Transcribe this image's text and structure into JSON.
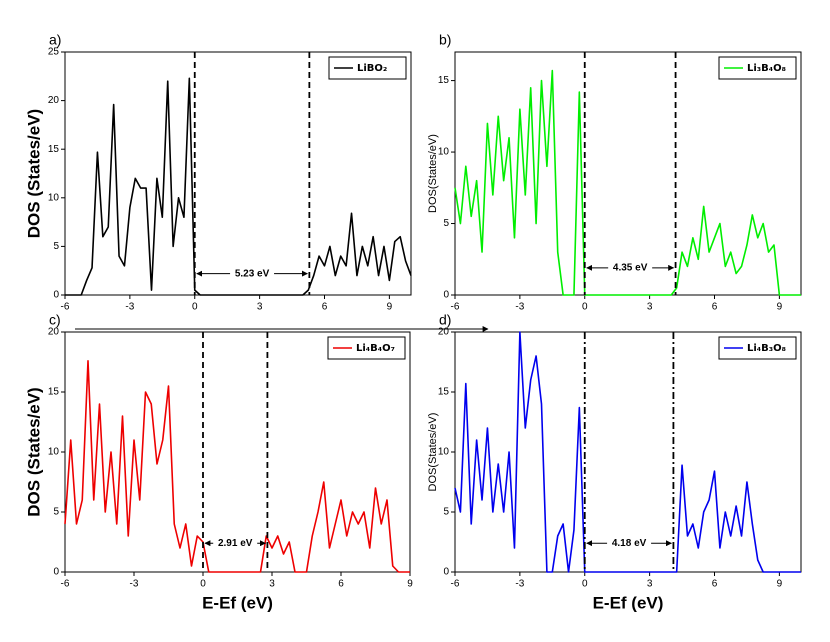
{
  "chart_data": [
    {
      "type": "line",
      "panel_label": "a)",
      "ylabel": "DOS (States/eV)",
      "ylabel_bold": true,
      "xlim": [
        -6,
        10
      ],
      "xticks": [
        -6,
        -3,
        0,
        3,
        6,
        9
      ],
      "ylim": [
        0,
        25
      ],
      "yticks": [
        0,
        5,
        10,
        15,
        20,
        25
      ],
      "legend": "upper right",
      "gap_edges": [
        0,
        5.3
      ],
      "vline_style": "dashed",
      "annotation_y": 2.2,
      "annotation": "5.23 eV",
      "x": [
        -6,
        -5.75,
        -5.5,
        -5.25,
        -5,
        -4.75,
        -4.5,
        -4.25,
        -4,
        -3.75,
        -3.5,
        -3.25,
        -3,
        -2.75,
        -2.5,
        -2.25,
        -2,
        -1.75,
        -1.5,
        -1.25,
        -1,
        -0.75,
        -0.5,
        -0.25,
        0,
        0.25,
        0.5,
        0.75,
        1,
        1.25,
        1.5,
        1.75,
        2,
        2.25,
        2.5,
        2.75,
        3,
        3.25,
        3.5,
        3.75,
        4,
        4.25,
        4.5,
        4.75,
        5,
        5.25,
        5.5,
        5.75,
        6,
        6.25,
        6.5,
        6.75,
        7,
        7.25,
        7.5,
        7.75,
        8,
        8.25,
        8.5,
        8.75,
        9,
        9.25,
        9.5,
        9.75,
        10
      ],
      "series": [
        {
          "name": "LiBO₂",
          "color": "#000000",
          "values": [
            0,
            0,
            0,
            0,
            1.5,
            2.8,
            14.7,
            6,
            7,
            19.6,
            4,
            3,
            9,
            12,
            11,
            11,
            0.5,
            12,
            8,
            22,
            5,
            10,
            8,
            22.3,
            0.5,
            0,
            0,
            0,
            0,
            0,
            0,
            0,
            0,
            0,
            0,
            0,
            0,
            0,
            0,
            0,
            0,
            0,
            0,
            0,
            0,
            0.5,
            2,
            4,
            3,
            5,
            2,
            4,
            3,
            8.4,
            2,
            5,
            3,
            6,
            2,
            5,
            1.5,
            5.5,
            6,
            3.5,
            2
          ]
        }
      ]
    },
    {
      "type": "line",
      "panel_label": "b)",
      "ylabel": "DOS(States/eV)",
      "ylabel_bold": false,
      "xlim": [
        -6,
        10
      ],
      "xticks": [
        -6,
        -3,
        0,
        3,
        6,
        9
      ],
      "ylim": [
        0,
        17
      ],
      "yticks": [
        0,
        5,
        10,
        15
      ],
      "legend": "upper right",
      "gap_edges": [
        0,
        4.2
      ],
      "vline_style": "dashed",
      "annotation_y": 1.9,
      "annotation": "4.35 eV",
      "x": [
        -6,
        -5.75,
        -5.5,
        -5.25,
        -5,
        -4.75,
        -4.5,
        -4.25,
        -4,
        -3.75,
        -3.5,
        -3.25,
        -3,
        -2.75,
        -2.5,
        -2.25,
        -2,
        -1.75,
        -1.5,
        -1.25,
        -1,
        -0.75,
        -0.5,
        -0.25,
        0,
        0.25,
        0.5,
        0.75,
        1,
        1.25,
        1.5,
        1.75,
        2,
        2.25,
        2.5,
        2.75,
        3,
        3.25,
        3.5,
        3.75,
        4,
        4.25,
        4.5,
        4.75,
        5,
        5.25,
        5.5,
        5.75,
        6,
        6.25,
        6.5,
        6.75,
        7,
        7.25,
        7.5,
        7.75,
        8,
        8.25,
        8.5,
        8.75,
        9,
        9.25,
        9.5,
        9.75,
        10
      ],
      "series": [
        {
          "name": "Li₃B₄O₈",
          "color": "#00ee00",
          "values": [
            7.5,
            5,
            9,
            5.5,
            8,
            3,
            12,
            7,
            12.5,
            8,
            11,
            4,
            13,
            7,
            14.5,
            5,
            15,
            9,
            15.7,
            3,
            0,
            0,
            0,
            14.2,
            0,
            0,
            0,
            0,
            0,
            0,
            0,
            0,
            0,
            0,
            0,
            0,
            0,
            0,
            0,
            0,
            0,
            0.5,
            3,
            2,
            4,
            2.5,
            6.2,
            3,
            4,
            5,
            2,
            3,
            1.5,
            2,
            3.5,
            5.6,
            4,
            5,
            3,
            3.5,
            0,
            0,
            0,
            0,
            0
          ]
        }
      ]
    },
    {
      "type": "line",
      "panel_label": "c)",
      "ylabel": "DOS (States/eV)",
      "ylabel_bold": true,
      "xlabel": "E-Ef (eV)",
      "xlim": [
        -6,
        9
      ],
      "xticks": [
        -6,
        -3,
        0,
        3,
        6,
        9
      ],
      "ylim": [
        0,
        20
      ],
      "yticks": [
        0,
        5,
        10,
        15,
        20
      ],
      "legend": "upper right",
      "gap_edges": [
        0,
        2.8
      ],
      "vline_style": "dashed",
      "annotation_y": 2.4,
      "annotation": "2.91 eV",
      "x": [
        -6,
        -5.75,
        -5.5,
        -5.25,
        -5,
        -4.75,
        -4.5,
        -4.25,
        -4,
        -3.75,
        -3.5,
        -3.25,
        -3,
        -2.75,
        -2.5,
        -2.25,
        -2,
        -1.75,
        -1.5,
        -1.25,
        -1,
        -0.75,
        -0.5,
        -0.25,
        0,
        0.25,
        0.5,
        0.75,
        1,
        1.25,
        1.5,
        1.75,
        2,
        2.25,
        2.5,
        2.75,
        3,
        3.25,
        3.5,
        3.75,
        4,
        4.25,
        4.5,
        4.75,
        5,
        5.25,
        5.5,
        5.75,
        6,
        6.25,
        6.5,
        6.75,
        7,
        7.25,
        7.5,
        7.75,
        8,
        8.25,
        8.5,
        8.75,
        9
      ],
      "series": [
        {
          "name": "Li₄B₄O₇",
          "color": "#ee0000",
          "values": [
            4,
            11,
            4,
            6,
            17.6,
            6,
            14,
            5,
            10,
            4,
            13,
            3,
            11,
            6,
            15,
            14,
            9,
            11,
            15.5,
            4,
            2,
            4,
            0.5,
            3,
            2.5,
            0,
            0,
            0,
            0,
            0,
            0,
            0,
            0,
            0,
            0,
            3,
            2,
            3,
            1.5,
            2.5,
            0,
            0,
            0,
            3,
            5,
            7.5,
            2,
            4,
            6,
            3,
            5,
            4,
            5,
            2,
            7,
            4,
            6,
            0.5,
            0,
            0,
            0
          ]
        }
      ]
    },
    {
      "type": "line",
      "panel_label": "d)",
      "ylabel": "DOS(States/eV)",
      "ylabel_bold": false,
      "xlabel": "E-Ef (eV)",
      "xlim": [
        -6,
        10
      ],
      "xticks": [
        -6,
        -3,
        0,
        3,
        6,
        9
      ],
      "ylim": [
        0,
        20
      ],
      "yticks": [
        0,
        5,
        10,
        15,
        20
      ],
      "legend": "upper right",
      "gap_edges": [
        0,
        4.1
      ],
      "vline_style": "dashdot",
      "annotation_y": 2.4,
      "annotation": "4.18 eV",
      "x": [
        -6,
        -5.75,
        -5.5,
        -5.25,
        -5,
        -4.75,
        -4.5,
        -4.25,
        -4,
        -3.75,
        -3.5,
        -3.25,
        -3,
        -2.75,
        -2.5,
        -2.25,
        -2,
        -1.75,
        -1.5,
        -1.25,
        -1,
        -0.75,
        -0.5,
        -0.25,
        0,
        0.25,
        0.5,
        0.75,
        1,
        1.25,
        1.5,
        1.75,
        2,
        2.25,
        2.5,
        2.75,
        3,
        3.25,
        3.5,
        3.75,
        4,
        4.25,
        4.5,
        4.75,
        5,
        5.25,
        5.5,
        5.75,
        6,
        6.25,
        6.5,
        6.75,
        7,
        7.25,
        7.5,
        7.75,
        8,
        8.25,
        8.5,
        8.75,
        9,
        9.25,
        9.5,
        9.75,
        10
      ],
      "series": [
        {
          "name": "Li₄B₃O₈",
          "color": "#0000ee",
          "values": [
            7,
            5,
            15.7,
            4,
            11,
            6,
            12,
            5,
            9,
            5,
            10,
            2,
            20,
            12,
            16,
            18,
            14,
            0,
            0,
            3,
            4,
            0,
            3.5,
            13.7,
            0,
            0,
            0,
            0,
            0,
            0,
            0,
            0,
            0,
            0,
            0,
            0,
            0,
            0,
            0,
            0,
            0,
            0,
            8.9,
            3,
            4,
            2,
            5,
            6,
            8.4,
            2,
            5,
            3,
            5.5,
            3,
            7.5,
            4,
            1,
            0,
            0,
            0,
            0,
            0,
            0,
            0,
            0
          ]
        }
      ]
    }
  ]
}
